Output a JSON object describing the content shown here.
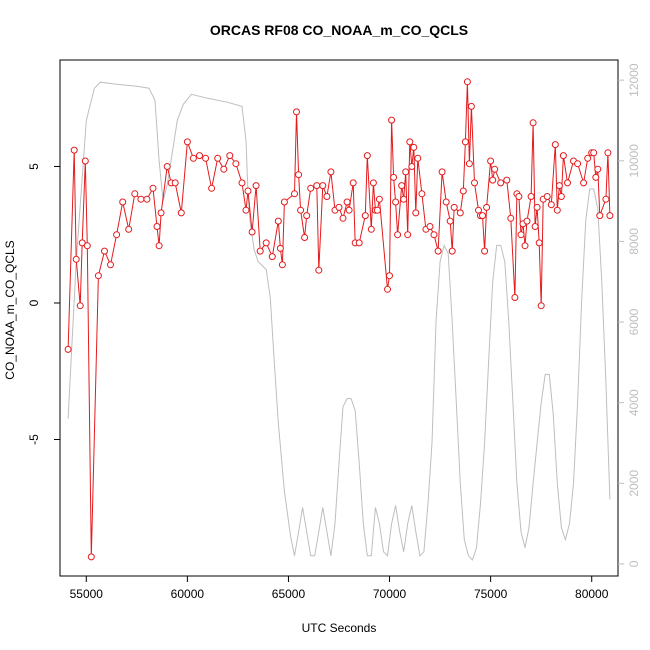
{
  "chart_data": {
    "type": "line",
    "title": "ORCAS RF08 CO_NOAA_m_CO_QCLS",
    "xlabel": "UTC Seconds",
    "ylabel": "CO_NOAA_m_CO_QCLS",
    "xlim": [
      53700,
      81300
    ],
    "ylim": [
      -10.0,
      8.9
    ],
    "y2lim": [
      -300,
      12500
    ],
    "x_ticks": [
      55000,
      60000,
      65000,
      70000,
      75000,
      80000
    ],
    "y_ticks": [
      -5,
      0,
      5
    ],
    "y2_ticks": [
      0,
      2000,
      4000,
      6000,
      8000,
      10000,
      12000
    ],
    "colors": {
      "primary": "#e41a1c",
      "secondary": "#bebebe",
      "axis": "#000000"
    },
    "series": [
      {
        "axis": "left",
        "style": "line+points",
        "color": "#e41a1c",
        "points": [
          [
            54100,
            -1.7
          ],
          [
            54400,
            5.6
          ],
          [
            54500,
            1.6
          ],
          [
            54700,
            -0.1
          ],
          [
            54800,
            2.2
          ],
          [
            54950,
            5.2
          ],
          [
            55050,
            2.1
          ],
          [
            55250,
            -9.3
          ],
          [
            55600,
            1.0
          ],
          [
            55900,
            1.9
          ],
          [
            56200,
            1.4
          ],
          [
            56500,
            2.5
          ],
          [
            56800,
            3.7
          ],
          [
            57100,
            2.7
          ],
          [
            57400,
            4.0
          ],
          [
            57700,
            3.8
          ],
          [
            58000,
            3.8
          ],
          [
            58300,
            4.2
          ],
          [
            58500,
            2.8
          ],
          [
            58600,
            2.1
          ],
          [
            58700,
            3.3
          ],
          [
            59000,
            5.0
          ],
          [
            59200,
            4.4
          ],
          [
            59400,
            4.4
          ],
          [
            59700,
            3.3
          ],
          [
            60000,
            5.9
          ],
          [
            60300,
            5.3
          ],
          [
            60600,
            5.4
          ],
          [
            60900,
            5.3
          ],
          [
            61200,
            4.2
          ],
          [
            61500,
            5.3
          ],
          [
            61800,
            4.9
          ],
          [
            62100,
            5.4
          ],
          [
            62400,
            5.1
          ],
          [
            62700,
            4.4
          ],
          [
            62900,
            3.4
          ],
          [
            63000,
            4.1
          ],
          [
            63200,
            2.6
          ],
          [
            63400,
            4.3
          ],
          [
            63600,
            1.9
          ],
          [
            63900,
            2.2
          ],
          [
            64200,
            1.7
          ],
          [
            64500,
            3.0
          ],
          [
            64600,
            2.0
          ],
          [
            64700,
            1.4
          ],
          [
            64800,
            3.7
          ],
          [
            65300,
            4.0
          ],
          [
            65400,
            7.0
          ],
          [
            65500,
            4.7
          ],
          [
            65600,
            3.4
          ],
          [
            65800,
            2.4
          ],
          [
            65900,
            3.2
          ],
          [
            66100,
            4.2
          ],
          [
            66400,
            4.3
          ],
          [
            66500,
            1.2
          ],
          [
            66700,
            4.3
          ],
          [
            66900,
            3.9
          ],
          [
            67100,
            4.8
          ],
          [
            67300,
            3.4
          ],
          [
            67500,
            3.5
          ],
          [
            67700,
            3.1
          ],
          [
            67900,
            3.7
          ],
          [
            68000,
            3.4
          ],
          [
            68200,
            4.4
          ],
          [
            68300,
            2.2
          ],
          [
            68500,
            2.2
          ],
          [
            68800,
            3.2
          ],
          [
            68900,
            5.4
          ],
          [
            69100,
            2.7
          ],
          [
            69200,
            4.4
          ],
          [
            69300,
            3.4
          ],
          [
            69400,
            3.4
          ],
          [
            69500,
            3.8
          ],
          [
            69900,
            0.5
          ],
          [
            70000,
            1.0
          ],
          [
            70100,
            6.7
          ],
          [
            70200,
            4.6
          ],
          [
            70300,
            3.7
          ],
          [
            70400,
            2.5
          ],
          [
            70600,
            4.3
          ],
          [
            70700,
            3.8
          ],
          [
            70800,
            4.8
          ],
          [
            70900,
            2.5
          ],
          [
            71000,
            5.9
          ],
          [
            71100,
            5.0
          ],
          [
            71200,
            5.7
          ],
          [
            71300,
            3.3
          ],
          [
            71400,
            5.3
          ],
          [
            71600,
            4.0
          ],
          [
            71800,
            2.7
          ],
          [
            72000,
            2.8
          ],
          [
            72200,
            2.5
          ],
          [
            72400,
            1.9
          ],
          [
            72600,
            4.8
          ],
          [
            72800,
            3.7
          ],
          [
            73000,
            3.0
          ],
          [
            73100,
            1.9
          ],
          [
            73200,
            3.5
          ],
          [
            73500,
            3.3
          ],
          [
            73650,
            4.1
          ],
          [
            73750,
            5.9
          ],
          [
            73850,
            8.1
          ],
          [
            73950,
            5.1
          ],
          [
            74050,
            7.2
          ],
          [
            74200,
            4.4
          ],
          [
            74400,
            3.4
          ],
          [
            74500,
            3.2
          ],
          [
            74600,
            3.2
          ],
          [
            74700,
            1.9
          ],
          [
            74800,
            3.5
          ],
          [
            75000,
            5.2
          ],
          [
            75100,
            4.5
          ],
          [
            75200,
            4.9
          ],
          [
            75500,
            4.4
          ],
          [
            75800,
            4.5
          ],
          [
            76000,
            3.1
          ],
          [
            76200,
            0.2
          ],
          [
            76300,
            4.0
          ],
          [
            76400,
            3.9
          ],
          [
            76500,
            2.5
          ],
          [
            76600,
            2.9
          ],
          [
            76700,
            2.1
          ],
          [
            76800,
            3.0
          ],
          [
            77000,
            3.9
          ],
          [
            77100,
            6.6
          ],
          [
            77200,
            2.8
          ],
          [
            77300,
            3.5
          ],
          [
            77400,
            2.2
          ],
          [
            77500,
            -0.1
          ],
          [
            77600,
            3.8
          ],
          [
            77800,
            3.9
          ],
          [
            78000,
            3.6
          ],
          [
            78200,
            5.8
          ],
          [
            78300,
            3.4
          ],
          [
            78400,
            4.3
          ],
          [
            78500,
            3.9
          ],
          [
            78600,
            5.4
          ],
          [
            78800,
            4.4
          ],
          [
            79100,
            5.2
          ],
          [
            79300,
            5.1
          ],
          [
            79600,
            4.4
          ],
          [
            79800,
            5.3
          ],
          [
            80000,
            5.5
          ],
          [
            80100,
            5.5
          ],
          [
            80200,
            4.6
          ],
          [
            80300,
            4.9
          ],
          [
            80400,
            3.2
          ],
          [
            80700,
            3.8
          ],
          [
            80800,
            5.5
          ],
          [
            80900,
            3.2
          ]
        ]
      },
      {
        "axis": "right",
        "style": "line",
        "color": "#bebebe",
        "points": [
          [
            54100,
            3600
          ],
          [
            54500,
            7500
          ],
          [
            55000,
            11000
          ],
          [
            55400,
            11800
          ],
          [
            55700,
            11950
          ],
          [
            56500,
            11900
          ],
          [
            57500,
            11850
          ],
          [
            58100,
            11800
          ],
          [
            58400,
            11500
          ],
          [
            58600,
            10000
          ],
          [
            58800,
            9000
          ],
          [
            59000,
            9400
          ],
          [
            59500,
            11000
          ],
          [
            59800,
            11400
          ],
          [
            60200,
            11650
          ],
          [
            60600,
            11600
          ],
          [
            61000,
            11550
          ],
          [
            62000,
            11450
          ],
          [
            62700,
            11350
          ],
          [
            62900,
            10500
          ],
          [
            63000,
            9200
          ],
          [
            63100,
            8500
          ],
          [
            63300,
            7800
          ],
          [
            63500,
            7500
          ],
          [
            63700,
            7400
          ],
          [
            63900,
            7300
          ],
          [
            64100,
            6600
          ],
          [
            64300,
            5000
          ],
          [
            64500,
            3500
          ],
          [
            64800,
            1800
          ],
          [
            65100,
            700
          ],
          [
            65300,
            200
          ],
          [
            65500,
            800
          ],
          [
            65700,
            1400
          ],
          [
            65900,
            800
          ],
          [
            66100,
            200
          ],
          [
            66300,
            200
          ],
          [
            66500,
            800
          ],
          [
            66700,
            1400
          ],
          [
            66900,
            800
          ],
          [
            67100,
            200
          ],
          [
            67300,
            1000
          ],
          [
            67500,
            2500
          ],
          [
            67700,
            3900
          ],
          [
            67900,
            4100
          ],
          [
            68100,
            4100
          ],
          [
            68300,
            3800
          ],
          [
            68500,
            2500
          ],
          [
            68700,
            1000
          ],
          [
            68900,
            200
          ],
          [
            69100,
            200
          ],
          [
            69300,
            1400
          ],
          [
            69500,
            1000
          ],
          [
            69700,
            300
          ],
          [
            69900,
            200
          ],
          [
            70100,
            1000
          ],
          [
            70300,
            1450
          ],
          [
            70500,
            800
          ],
          [
            70700,
            300
          ],
          [
            70900,
            1000
          ],
          [
            71100,
            1450
          ],
          [
            71300,
            800
          ],
          [
            71500,
            200
          ],
          [
            71700,
            300
          ],
          [
            71900,
            1500
          ],
          [
            72100,
            3000
          ],
          [
            72300,
            6000
          ],
          [
            72500,
            7500
          ],
          [
            72700,
            7900
          ],
          [
            72900,
            7700
          ],
          [
            73100,
            6000
          ],
          [
            73300,
            4000
          ],
          [
            73500,
            2000
          ],
          [
            73700,
            600
          ],
          [
            73900,
            200
          ],
          [
            74100,
            100
          ],
          [
            74300,
            400
          ],
          [
            74500,
            1500
          ],
          [
            74700,
            3000
          ],
          [
            74900,
            5000
          ],
          [
            75100,
            7000
          ],
          [
            75300,
            7900
          ],
          [
            75500,
            7900
          ],
          [
            75700,
            7500
          ],
          [
            75900,
            6000
          ],
          [
            76100,
            4000
          ],
          [
            76300,
            2000
          ],
          [
            76500,
            800
          ],
          [
            76700,
            400
          ],
          [
            76900,
            900
          ],
          [
            77100,
            2000
          ],
          [
            77300,
            3000
          ],
          [
            77500,
            4000
          ],
          [
            77700,
            4700
          ],
          [
            77900,
            4700
          ],
          [
            78100,
            3700
          ],
          [
            78300,
            2000
          ],
          [
            78500,
            900
          ],
          [
            78700,
            600
          ],
          [
            78900,
            1000
          ],
          [
            79100,
            2000
          ],
          [
            79300,
            4000
          ],
          [
            79500,
            6500
          ],
          [
            79700,
            8500
          ],
          [
            79900,
            9300
          ],
          [
            80100,
            9300
          ],
          [
            80300,
            8800
          ],
          [
            80500,
            7000
          ],
          [
            80700,
            4500
          ],
          [
            80900,
            1600
          ]
        ]
      }
    ]
  }
}
